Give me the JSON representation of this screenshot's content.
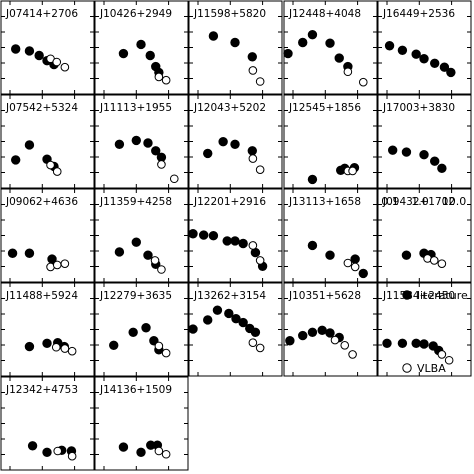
{
  "chart_data": {
    "type": "scatter",
    "grid": false,
    "legend": {
      "placement": "right",
      "entries": [
        {
          "label": "literature",
          "marker": "filled-circle"
        },
        {
          "label": "VLBA",
          "marker": "open-circle"
        }
      ]
    },
    "xaxis": {
      "scale": "log",
      "tick_labels": [
        "0.1",
        "1.0",
        "10.0"
      ],
      "tick_values": [
        0.1,
        1.0,
        10.0
      ],
      "range": [
        0.07,
        30
      ]
    },
    "yaxis": {
      "scale": "log"
    },
    "panels": [
      {
        "name": "J07414+2706",
        "literature": [
          [
            0.15,
            0.6
          ],
          [
            0.4,
            0.57
          ],
          [
            0.8,
            0.5
          ],
          [
            1.4,
            0.42
          ],
          [
            2.3,
            0.36
          ]
        ],
        "vlba": [
          [
            1.8,
            0.45
          ],
          [
            2.8,
            0.4
          ],
          [
            5.0,
            0.32
          ]
        ]
      },
      {
        "name": "J10426+2949",
        "literature": [
          [
            0.4,
            0.53
          ],
          [
            1.4,
            0.67
          ],
          [
            2.7,
            0.5
          ],
          [
            4.0,
            0.33
          ],
          [
            5.0,
            0.24
          ]
        ],
        "vlba": [
          [
            5.0,
            0.17
          ],
          [
            8.4,
            0.12
          ]
        ]
      },
      {
        "name": "J11598+5820",
        "literature": [
          [
            0.3,
            0.8
          ],
          [
            1.4,
            0.7
          ],
          [
            4.8,
            0.48
          ]
        ],
        "vlba": [
          [
            5.0,
            0.27
          ],
          [
            8.4,
            0.1
          ]
        ]
      },
      {
        "name": "J12448+4048",
        "literature": [
          [
            0.07,
            0.53
          ],
          [
            0.2,
            0.7
          ],
          [
            0.4,
            0.82
          ],
          [
            1.4,
            0.69
          ],
          [
            2.7,
            0.46
          ],
          [
            5.0,
            0.33
          ]
        ],
        "vlba": [
          [
            5.0,
            0.25
          ],
          [
            15.0,
            0.09
          ]
        ]
      },
      {
        "name": "J16449+2536",
        "literature": [
          [
            0.12,
            0.65
          ],
          [
            0.3,
            0.58
          ],
          [
            0.8,
            0.52
          ],
          [
            1.4,
            0.45
          ],
          [
            3.0,
            0.38
          ],
          [
            6.0,
            0.32
          ],
          [
            9.5,
            0.24
          ]
        ],
        "vlba": []
      },
      {
        "name": "J07542+5324",
        "literature": [
          [
            0.15,
            0.34
          ],
          [
            0.4,
            0.57
          ],
          [
            1.4,
            0.35
          ],
          [
            2.3,
            0.24
          ]
        ],
        "vlba": [
          [
            1.8,
            0.26
          ],
          [
            2.9,
            0.16
          ]
        ]
      },
      {
        "name": "J11113+1955",
        "literature": [
          [
            0.3,
            0.58
          ],
          [
            1.0,
            0.64
          ],
          [
            2.3,
            0.6
          ],
          [
            4.0,
            0.48
          ],
          [
            6.0,
            0.38
          ]
        ],
        "vlba": [
          [
            6.0,
            0.27
          ],
          [
            15.0,
            0.05
          ]
        ]
      },
      {
        "name": "J12043+5202",
        "literature": [
          [
            0.2,
            0.44
          ],
          [
            0.6,
            0.62
          ],
          [
            1.4,
            0.58
          ],
          [
            4.8,
            0.48
          ]
        ],
        "vlba": [
          [
            5.0,
            0.36
          ],
          [
            8.4,
            0.19
          ]
        ]
      },
      {
        "name": "J12545+1856",
        "literature": [
          [
            0.4,
            0.04
          ],
          [
            3.0,
            0.18
          ],
          [
            4.0,
            0.21
          ],
          [
            8.0,
            0.22
          ]
        ],
        "vlba": [
          [
            5.0,
            0.17
          ],
          [
            7.0,
            0.17
          ]
        ]
      },
      {
        "name": "J17003+3830",
        "literature": [
          [
            0.15,
            0.49
          ],
          [
            0.4,
            0.46
          ],
          [
            1.4,
            0.42
          ],
          [
            3.0,
            0.32
          ],
          [
            5.0,
            0.21
          ]
        ],
        "vlba": []
      },
      {
        "name": "J09062+4636",
        "literature": [
          [
            0.12,
            0.35
          ],
          [
            0.4,
            0.35
          ],
          [
            2.0,
            0.26
          ]
        ],
        "vlba": [
          [
            1.8,
            0.14
          ],
          [
            2.9,
            0.17
          ],
          [
            5.0,
            0.19
          ]
        ]
      },
      {
        "name": "J11359+4258",
        "literature": [
          [
            0.3,
            0.37
          ],
          [
            1.0,
            0.52
          ],
          [
            2.3,
            0.32
          ],
          [
            4.0,
            0.18
          ]
        ],
        "vlba": [
          [
            3.8,
            0.24
          ],
          [
            6.0,
            0.1
          ]
        ]
      },
      {
        "name": "J12201+2916",
        "literature": [
          [
            0.07,
            0.65
          ],
          [
            0.15,
            0.63
          ],
          [
            0.3,
            0.62
          ],
          [
            0.8,
            0.54
          ],
          [
            1.4,
            0.54
          ],
          [
            2.5,
            0.5
          ],
          [
            6.0,
            0.36
          ],
          [
            10.0,
            0.15
          ]
        ],
        "vlba": [
          [
            5.0,
            0.47
          ],
          [
            8.4,
            0.24
          ]
        ]
      },
      {
        "name": "J13113+1658",
        "literature": [
          [
            0.4,
            0.47
          ],
          [
            1.4,
            0.32
          ],
          [
            8.4,
            0.26
          ],
          [
            15.0,
            0.04
          ]
        ],
        "vlba": [
          [
            5.0,
            0.2
          ],
          [
            8.4,
            0.14
          ]
        ]
      },
      {
        "name": "J09432+1702",
        "literature": [
          [
            0.4,
            0.32
          ],
          [
            1.4,
            0.35
          ],
          [
            2.3,
            0.33
          ]
        ],
        "vlba": [
          [
            1.8,
            0.27
          ],
          [
            2.9,
            0.24
          ],
          [
            5.0,
            0.19
          ]
        ]
      },
      {
        "name": "J11488+5924",
        "literature": [
          [
            0.4,
            0.36
          ],
          [
            1.4,
            0.41
          ],
          [
            3.0,
            0.42
          ],
          [
            4.8,
            0.36
          ]
        ],
        "vlba": [
          [
            2.7,
            0.35
          ],
          [
            5.0,
            0.33
          ],
          [
            8.4,
            0.29
          ]
        ]
      },
      {
        "name": "J12279+3635",
        "literature": [
          [
            0.2,
            0.38
          ],
          [
            0.8,
            0.58
          ],
          [
            2.0,
            0.65
          ],
          [
            3.5,
            0.45
          ],
          [
            5.0,
            0.31
          ]
        ],
        "vlba": [
          [
            5.0,
            0.37
          ],
          [
            8.4,
            0.26
          ]
        ]
      },
      {
        "name": "J13262+3154",
        "literature": [
          [
            0.07,
            0.63
          ],
          [
            0.2,
            0.77
          ],
          [
            0.4,
            0.92
          ],
          [
            0.9,
            0.87
          ],
          [
            1.5,
            0.79
          ],
          [
            2.5,
            0.73
          ],
          [
            4.0,
            0.64
          ],
          [
            6.0,
            0.58
          ]
        ],
        "vlba": [
          [
            5.0,
            0.42
          ],
          [
            8.4,
            0.34
          ]
        ]
      },
      {
        "name": "J10351+5628",
        "literature": [
          [
            0.08,
            0.45
          ],
          [
            0.2,
            0.53
          ],
          [
            0.4,
            0.58
          ],
          [
            0.8,
            0.61
          ],
          [
            1.4,
            0.57
          ],
          [
            2.7,
            0.5
          ]
        ],
        "vlba": [
          [
            2.0,
            0.46
          ],
          [
            4.0,
            0.38
          ],
          [
            7.0,
            0.24
          ]
        ]
      },
      {
        "name": "J11584+2450",
        "literature": [
          [
            0.1,
            0.41
          ],
          [
            0.3,
            0.41
          ],
          [
            0.8,
            0.41
          ],
          [
            1.4,
            0.4
          ],
          [
            2.7,
            0.37
          ],
          [
            4.0,
            0.3
          ]
        ],
        "vlba": [
          [
            5.0,
            0.24
          ],
          [
            8.4,
            0.15
          ]
        ]
      },
      {
        "name": "J12342+4753",
        "literature": [
          [
            0.5,
            0.28
          ],
          [
            1.4,
            0.18
          ],
          [
            4.0,
            0.21
          ],
          [
            8.0,
            0.2
          ]
        ],
        "vlba": [
          [
            3.0,
            0.2
          ],
          [
            8.4,
            0.12
          ]
        ]
      },
      {
        "name": "J14136+1509",
        "literature": [
          [
            0.4,
            0.26
          ],
          [
            1.4,
            0.18
          ],
          [
            2.8,
            0.29
          ],
          [
            4.5,
            0.29
          ]
        ],
        "vlba": [
          [
            5.0,
            0.2
          ],
          [
            8.4,
            0.15
          ]
        ]
      }
    ]
  }
}
